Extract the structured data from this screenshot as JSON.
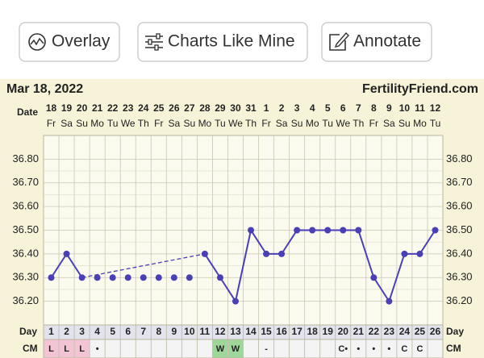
{
  "toolbar": {
    "buttons": [
      "Overlay",
      "Charts Like Mine",
      "Annotate"
    ]
  },
  "chart_data": {
    "type": "line",
    "title": "Mar 18, 2022",
    "site": "FertilityFriend.com",
    "date_row": {
      "label": "Date",
      "values": [
        "18",
        "19",
        "20",
        "21",
        "22",
        "23",
        "24",
        "25",
        "26",
        "27",
        "28",
        "29",
        "30",
        "31",
        "1",
        "2",
        "3",
        "4",
        "5",
        "6",
        "7",
        "8",
        "9",
        "10",
        "11",
        "12"
      ]
    },
    "weekdays": [
      "Fr",
      "Sa",
      "Su",
      "Mo",
      "Tu",
      "We",
      "Th",
      "Fr",
      "Sa",
      "Su",
      "Mo",
      "Tu",
      "We",
      "Th",
      "Fr",
      "Sa",
      "Su",
      "Mo",
      "Tu",
      "We",
      "Th",
      "Fr",
      "Sa",
      "Su",
      "Mo",
      "Tu"
    ],
    "x_label": "Day",
    "x": [
      1,
      2,
      3,
      4,
      5,
      6,
      7,
      8,
      9,
      10,
      11,
      12,
      13,
      14,
      15,
      16,
      17,
      18,
      19,
      20,
      21,
      22,
      23,
      24,
      25,
      26
    ],
    "xlim": [
      0.5,
      26.5
    ],
    "series": [
      {
        "color": "#4a3fb5",
        "line": true,
        "gap_line": "dashed",
        "values": [
          36.3,
          36.4,
          36.3,
          null,
          null,
          null,
          null,
          null,
          null,
          null,
          36.4,
          36.3,
          36.2,
          36.5,
          36.4,
          36.4,
          36.5,
          36.5,
          36.5,
          36.5,
          36.5,
          36.3,
          36.2,
          36.4,
          36.4,
          36.5
        ]
      },
      {
        "color": "#4a3fb5",
        "line": false,
        "values": [
          null,
          null,
          null,
          36.3,
          36.3,
          36.3,
          36.3,
          36.3,
          36.3,
          36.3,
          null,
          null,
          null,
          null,
          null,
          null,
          null,
          null,
          null,
          null,
          null,
          null,
          null,
          null,
          null,
          null
        ]
      }
    ],
    "ylim": [
      36.1,
      36.9
    ],
    "yticks": [
      {
        "value": 36.2,
        "label": "36.20"
      },
      {
        "value": 36.3,
        "label": "36.30"
      },
      {
        "value": 36.4,
        "label": "36.40"
      },
      {
        "value": 36.5,
        "label": "36.50"
      },
      {
        "value": 36.6,
        "label": "36.60"
      },
      {
        "value": 36.7,
        "label": "36.70"
      },
      {
        "value": 36.8,
        "label": "36.80"
      }
    ],
    "grid": true,
    "cm_row": {
      "label": "CM",
      "values": [
        "L",
        "L",
        "L",
        "•",
        null,
        null,
        null,
        null,
        null,
        null,
        null,
        "W",
        "W",
        null,
        "-",
        null,
        null,
        null,
        null,
        "C•",
        "•",
        "•",
        "•",
        "C",
        "C",
        null
      ],
      "colors": {
        "L": "#f2c4d4",
        "W": "#9fd69a"
      }
    }
  }
}
